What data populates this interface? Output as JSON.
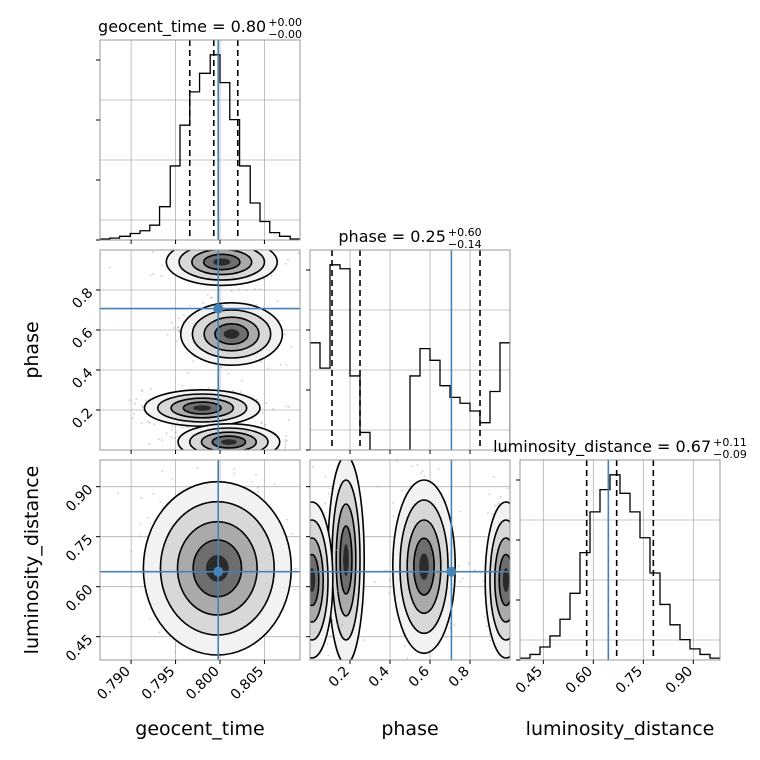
{
  "chart_data": {
    "type": "corner",
    "truth_color": "#4682b4",
    "parameters": [
      {
        "name": "geocent_time",
        "label": "geocent_time",
        "title_text": "geocent_time = 0.80",
        "title_plus": "+0.00",
        "title_minus": "−0.00",
        "median": 0.7993,
        "quantiles": [
          0.7966,
          0.7993,
          0.802
        ],
        "truth": 0.7998,
        "range": [
          0.7865,
          0.809
        ],
        "ticks": [
          0.79,
          0.795,
          0.8,
          0.805
        ],
        "tick_labels": [
          "0.790",
          "0.795",
          "0.800",
          "0.805"
        ]
      },
      {
        "name": "phase",
        "label": "phase",
        "title_text": "phase = 0.25",
        "title_plus": "+0.60",
        "title_minus": "−0.14",
        "median": 0.25,
        "quantiles": [
          0.11,
          0.25,
          0.85
        ],
        "truth": 0.707,
        "range": [
          0.0,
          1.0
        ],
        "ticks": [
          0.2,
          0.4,
          0.6,
          0.8
        ],
        "tick_labels": [
          "0.2",
          "0.4",
          "0.6",
          "0.8"
        ]
      },
      {
        "name": "luminosity_distance",
        "label": "luminosity_distance",
        "title_text": "luminosity_distance = 0.67",
        "title_plus": "+0.11",
        "title_minus": "−0.09",
        "median": 0.67,
        "quantiles": [
          0.58,
          0.67,
          0.78
        ],
        "truth": 0.645,
        "range": [
          0.38,
          0.98
        ],
        "ticks": [
          0.45,
          0.6,
          0.75,
          0.9
        ],
        "tick_labels": [
          "0.45",
          "0.60",
          "0.75",
          "0.90"
        ]
      }
    ],
    "histograms": [
      {
        "param": "geocent_time",
        "bin_edges": [
          0.7865,
          0.7876,
          0.7887,
          0.7899,
          0.791,
          0.7921,
          0.7932,
          0.7944,
          0.7955,
          0.7966,
          0.7977,
          0.7989,
          0.8,
          0.8011,
          0.8022,
          0.8034,
          0.8045,
          0.8056,
          0.8067,
          0.8079,
          0.809
        ],
        "counts": [
          0.5,
          1,
          2,
          3.5,
          5,
          8,
          18,
          40,
          62,
          80,
          90,
          100,
          85,
          65,
          40,
          20,
          10,
          4,
          2,
          0.5
        ]
      },
      {
        "param": "phase",
        "bin_edges": [
          0.0,
          0.05,
          0.1,
          0.15,
          0.2,
          0.25,
          0.3,
          0.35,
          0.4,
          0.45,
          0.5,
          0.55,
          0.6,
          0.65,
          0.7,
          0.75,
          0.8,
          0.85,
          0.9,
          0.95,
          1.0
        ],
        "counts": [
          55,
          42,
          95,
          93,
          38,
          9,
          0,
          0,
          0,
          0,
          38,
          52,
          46,
          33,
          27,
          24,
          20,
          14,
          30,
          55
        ]
      },
      {
        "param": "luminosity_distance",
        "bin_edges": [
          0.38,
          0.41,
          0.44,
          0.47,
          0.5,
          0.53,
          0.56,
          0.59,
          0.62,
          0.65,
          0.68,
          0.71,
          0.74,
          0.77,
          0.8,
          0.83,
          0.86,
          0.89,
          0.92,
          0.95,
          0.98
        ],
        "counts": [
          1,
          3,
          7,
          13,
          22,
          36,
          58,
          80,
          92,
          100,
          90,
          80,
          66,
          47,
          30,
          19,
          11,
          6,
          3,
          1
        ]
      }
    ],
    "contour_pairs": [
      {
        "x": "geocent_time",
        "y": "phase",
        "modes": [
          {
            "cx": 0.8002,
            "cy": 0.94,
            "sx": 0.0024,
            "sy": 0.045
          },
          {
            "cx": 0.8013,
            "cy": 0.58,
            "sx": 0.0022,
            "sy": 0.06
          },
          {
            "cx": 0.798,
            "cy": 0.21,
            "sx": 0.0025,
            "sy": 0.035
          },
          {
            "cx": 0.801,
            "cy": 0.04,
            "sx": 0.0022,
            "sy": 0.035
          }
        ]
      },
      {
        "x": "phase",
        "y": "luminosity_distance",
        "modes": [
          {
            "cx": 0.18,
            "cy": 0.68,
            "sx": 0.035,
            "sy": 0.12
          },
          {
            "cx": 0.57,
            "cy": 0.66,
            "sx": 0.06,
            "sy": 0.1
          },
          {
            "cx": 0.98,
            "cy": 0.62,
            "sx": 0.04,
            "sy": 0.09
          },
          {
            "cx": 0.01,
            "cy": 0.62,
            "sx": 0.04,
            "sy": 0.09
          }
        ]
      },
      {
        "x": "geocent_time",
        "y": "luminosity_distance",
        "modes": [
          {
            "cx": 0.7997,
            "cy": 0.655,
            "sx": 0.0032,
            "sy": 0.1
          }
        ]
      }
    ],
    "grid": true
  }
}
